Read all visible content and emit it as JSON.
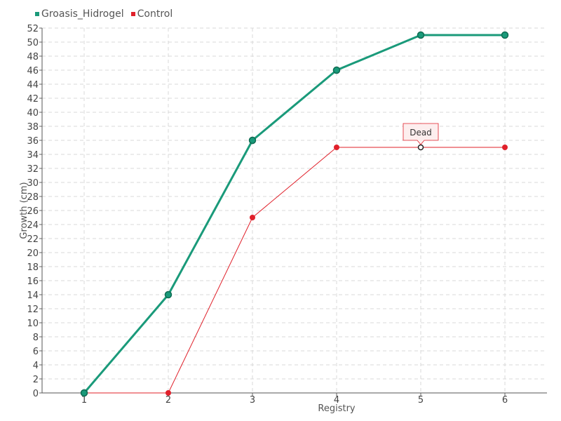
{
  "chart_data": {
    "type": "line",
    "xlabel": "Registry",
    "ylabel": "Growth (cm)",
    "categories": [
      1,
      2,
      3,
      4,
      5,
      6
    ],
    "ylim": [
      0,
      52
    ],
    "ytick_step": 2,
    "grid": true,
    "legend_position": "top-left",
    "series": [
      {
        "name": "Groasis_Hidrogel",
        "color": "#1a9a7a",
        "values": [
          0,
          14,
          36,
          46,
          51,
          51
        ]
      },
      {
        "name": "Control",
        "color": "#e0202a",
        "values": [
          0,
          0,
          25,
          35,
          35,
          35
        ]
      }
    ],
    "annotations": [
      {
        "label": "Dead",
        "series": "Control",
        "x": 5,
        "y": 35
      }
    ]
  }
}
